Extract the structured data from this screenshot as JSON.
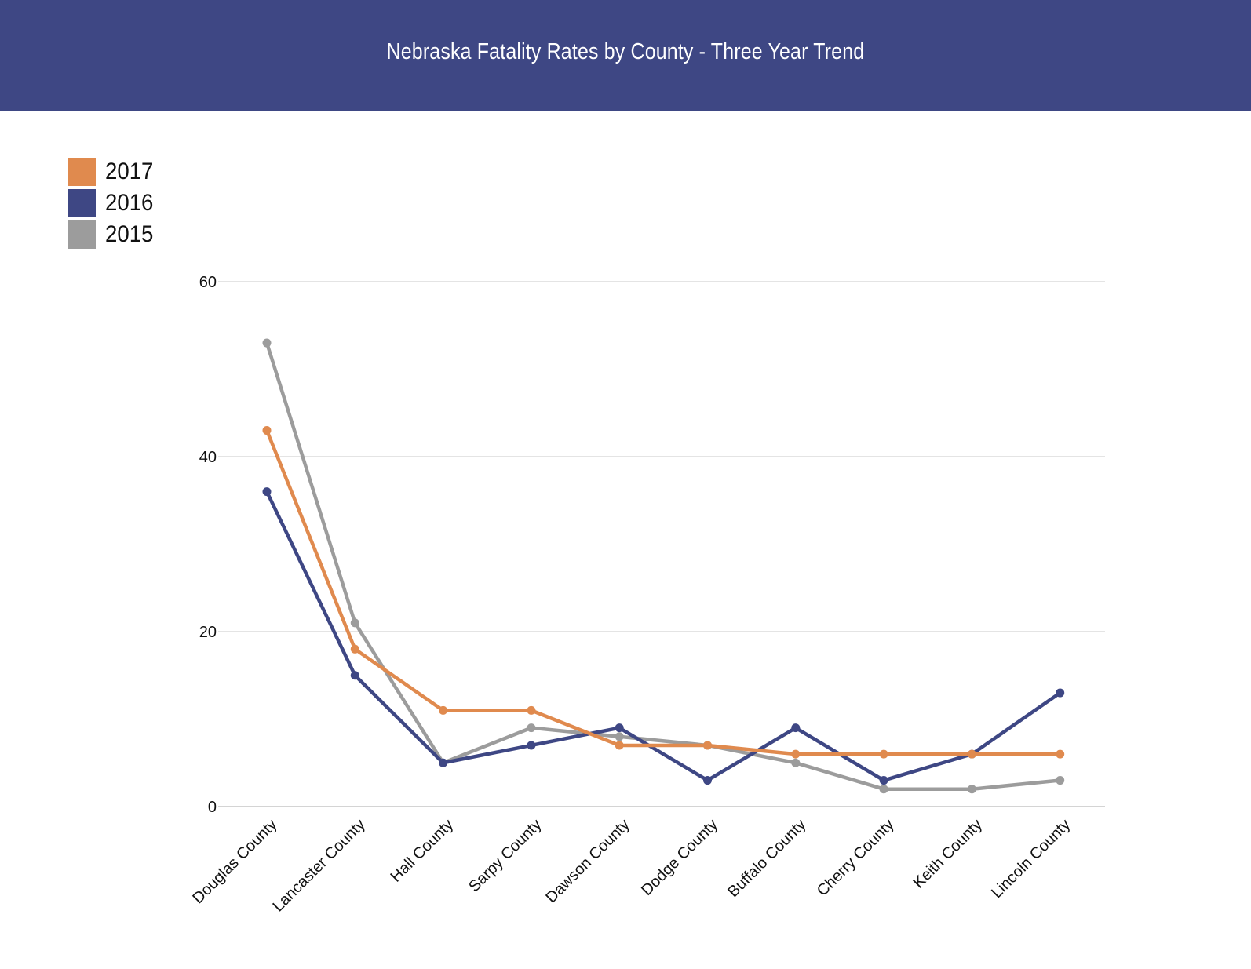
{
  "header": {
    "title": "Nebraska Fatality Rates by County - Three Year Trend"
  },
  "legend": [
    {
      "label": "2017",
      "color": "#e08a4e"
    },
    {
      "label": "2016",
      "color": "#3e4784"
    },
    {
      "label": "2015",
      "color": "#9c9c9c"
    }
  ],
  "chart_data": {
    "type": "line",
    "title": "Nebraska Fatality Rates by County - Three Year Trend",
    "xlabel": "",
    "ylabel": "",
    "ylim": [
      0,
      60
    ],
    "yticks": [
      0,
      20,
      40,
      60
    ],
    "grid": true,
    "legend_position": "top-left",
    "categories": [
      "Douglas County",
      "Lancaster County",
      "Hall County",
      "Sarpy County",
      "Dawson County",
      "Dodge County",
      "Buffalo County",
      "Cherry County",
      "Keith County",
      "Lincoln County"
    ],
    "series": [
      {
        "name": "2015",
        "color": "#9c9c9c",
        "values": [
          53,
          21,
          5,
          9,
          8,
          7,
          5,
          2,
          2,
          3
        ]
      },
      {
        "name": "2016",
        "color": "#3e4784",
        "values": [
          36,
          15,
          5,
          7,
          9,
          3,
          9,
          3,
          6,
          13
        ]
      },
      {
        "name": "2017",
        "color": "#e08a4e",
        "values": [
          43,
          18,
          11,
          11,
          7,
          7,
          6,
          6,
          6,
          6
        ]
      }
    ]
  }
}
